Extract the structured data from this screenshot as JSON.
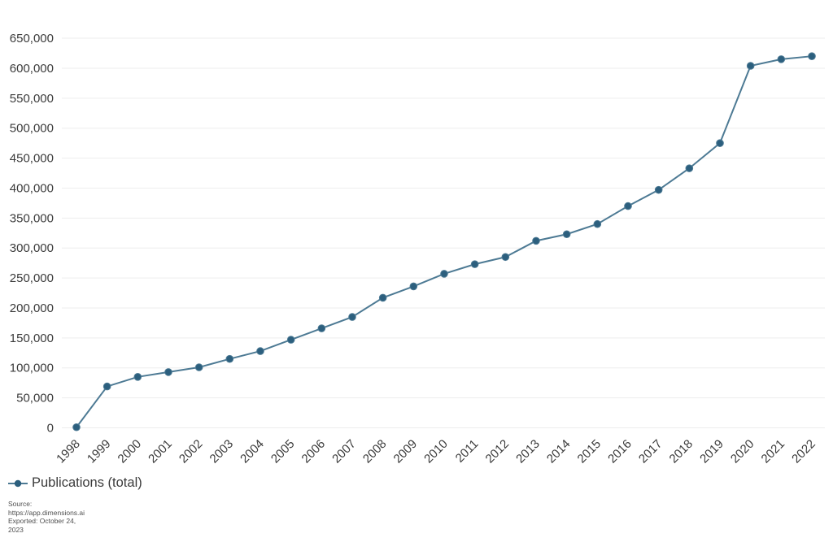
{
  "chart_data": {
    "type": "line",
    "title": "",
    "categories": [
      "1998",
      "1999",
      "2000",
      "2001",
      "2002",
      "2003",
      "2004",
      "2005",
      "2006",
      "2007",
      "2008",
      "2009",
      "2010",
      "2011",
      "2012",
      "2013",
      "2014",
      "2015",
      "2016",
      "2017",
      "2018",
      "2019",
      "2020",
      "2021",
      "2022"
    ],
    "series": [
      {
        "name": "Publications (total)",
        "values": [
          1000,
          69000,
          85000,
          93000,
          101000,
          115000,
          128000,
          147000,
          166000,
          185000,
          217000,
          236000,
          257000,
          273000,
          285000,
          312000,
          323000,
          340000,
          370000,
          397000,
          433000,
          475000,
          604000,
          615000,
          620000
        ]
      }
    ],
    "xlabel": "",
    "ylabel": "",
    "ylim": [
      0,
      650000
    ],
    "ytick_step": 50000,
    "ytick_labels": [
      "0",
      "50,000",
      "100,000",
      "150,000",
      "200,000",
      "250,000",
      "300,000",
      "350,000",
      "400,000",
      "450,000",
      "500,000",
      "550,000",
      "600,000",
      "650,000"
    ],
    "grid": "horizontal",
    "legend_position": "bottom-left",
    "marker": "circle",
    "x_tick_rotation_deg": -45
  },
  "legend": {
    "label": "Publications (total)"
  },
  "source": {
    "lines": [
      "Source:",
      "https://app.dimensions.ai",
      "Exported: October 24,",
      "2023"
    ]
  },
  "colors": {
    "line": "#4d7a94",
    "marker": "#2c5f7e",
    "grid": "#ededed",
    "axis_text": "#3b3b3b",
    "source_text": "#4f4f4f",
    "background": "#ffffff"
  }
}
